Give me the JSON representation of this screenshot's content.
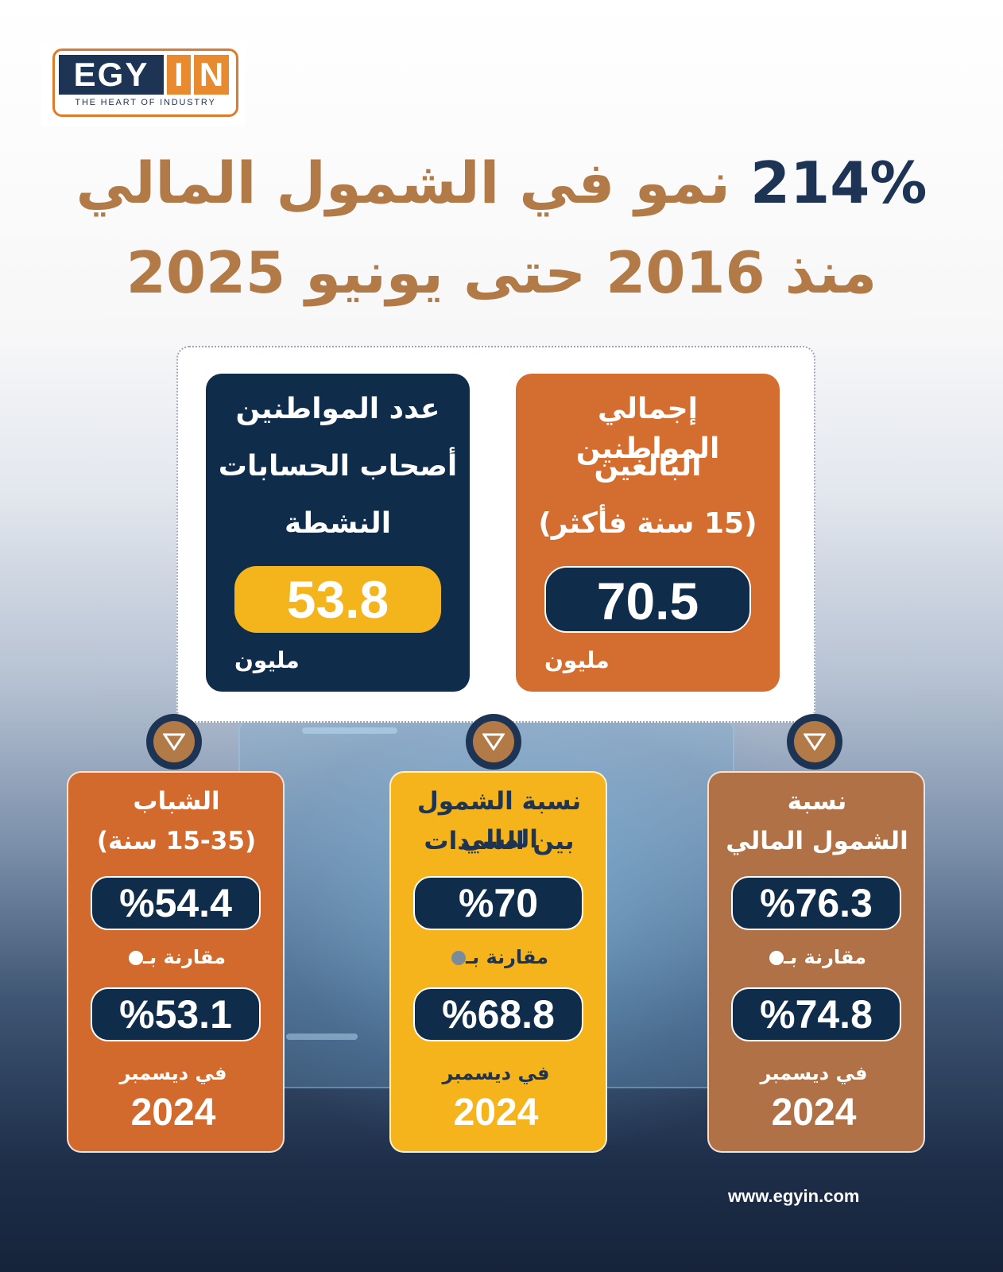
{
  "logo": {
    "part1": "EGY",
    "part2": "I",
    "part3": "N",
    "tagline": "THE HEART OF INDUSTRY"
  },
  "title": {
    "number": "214%",
    "line1_text": "نمو في الشمول المالي",
    "line2": "منذ 2016 حتى يونيو 2025"
  },
  "top_cards": [
    {
      "label_lines": [
        "عدد المواطنين",
        "أصحاب الحسابات",
        "النشطة"
      ],
      "value": "53.8",
      "unit": "مليون"
    },
    {
      "label_lines": [
        "إجمالي المواطنين",
        "البالغين",
        "(15 سنة فأكثر)"
      ],
      "value": "70.5",
      "unit": "مليون"
    }
  ],
  "bottom_cards": [
    {
      "label_lines": [
        "الشباب",
        "(15-35 سنة)"
      ],
      "value": "%54.4",
      "compare_label": "مقارنة بـ",
      "previous": "%53.1",
      "period_label": "في ديسمبر",
      "year": "2024"
    },
    {
      "label_lines": [
        "نسبة الشمول المالي",
        "بين السيدات"
      ],
      "value": "%70",
      "compare_label": "مقارنة بـ",
      "previous": "%68.8",
      "period_label": "في ديسمبر",
      "year": "2024"
    },
    {
      "label_lines": [
        "نسبة",
        "الشمول المالي"
      ],
      "value": "%76.3",
      "compare_label": "مقارنة بـ",
      "previous": "%74.8",
      "period_label": "في ديسمبر",
      "year": "2024"
    }
  ],
  "footer": {
    "url": "www.egyin.com"
  },
  "colors": {
    "navy": "#0f2c4b",
    "orange": "#d26a2e",
    "yellow": "#f5b41c",
    "brown": "#b07146",
    "gold_title": "#b27a47"
  },
  "icons": {
    "marker": "triangle-down-icon",
    "bullet": "dot-icon"
  }
}
